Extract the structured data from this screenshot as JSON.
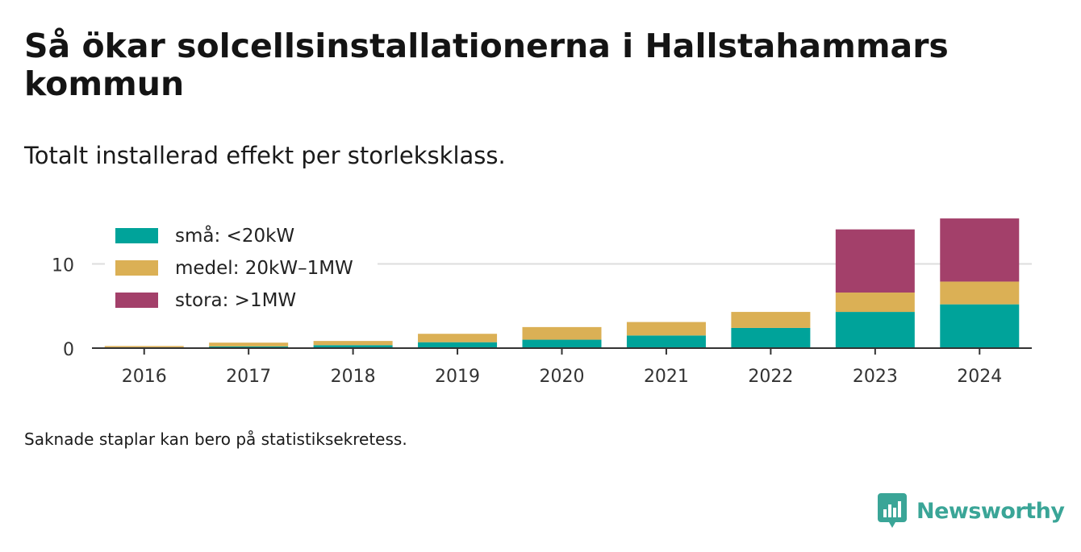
{
  "header": {
    "title": "Så ökar solcellsinstallationerna i Hallstahammars kommun",
    "subtitle": "Totalt installerad effekt per storleksklass."
  },
  "footer": {
    "note": "Saknade staplar kan bero på statistiksekretess.",
    "brand": "Newsworthy"
  },
  "chart_data": {
    "type": "bar",
    "stacked": true,
    "title": "Så ökar solcellsinstallationerna i Hallstahammars kommun",
    "subtitle": "Totalt installerad effekt per storleksklass.",
    "xlabel": "",
    "ylabel": "",
    "categories": [
      "2016",
      "2017",
      "2018",
      "2019",
      "2020",
      "2021",
      "2022",
      "2023",
      "2024"
    ],
    "ylim": [
      0,
      15.5
    ],
    "yticks": [
      0,
      10
    ],
    "grid": true,
    "legend_position": "top-left",
    "series": [
      {
        "name": "små: <20kW",
        "color": "#00a39a",
        "values": [
          0.1,
          0.2,
          0.35,
          0.7,
          1.0,
          1.5,
          2.4,
          4.3,
          5.2
        ]
      },
      {
        "name": "medel: 20kW–1MW",
        "color": "#dbb055",
        "values": [
          0.15,
          0.45,
          0.5,
          1.0,
          1.5,
          1.6,
          1.9,
          2.3,
          2.7
        ]
      },
      {
        "name": "stora: >1MW",
        "color": "#a3406a",
        "values": [
          0,
          0,
          0,
          0,
          0,
          0,
          0,
          7.5,
          7.5
        ]
      }
    ]
  }
}
